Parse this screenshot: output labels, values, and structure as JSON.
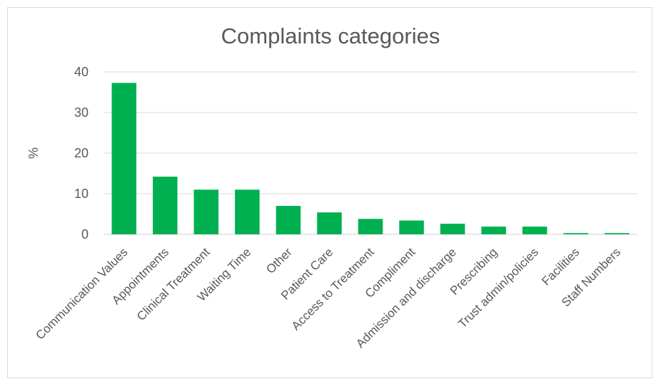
{
  "chart_data": {
    "type": "bar",
    "title": "Complaints categories",
    "xlabel": "",
    "ylabel": "%",
    "ylim": [
      0,
      40
    ],
    "yticks": [
      0,
      10,
      20,
      30,
      40
    ],
    "grid": true,
    "legend": "none",
    "bar_color": "#00b050",
    "categories": [
      "Communication Values",
      "Appointments",
      "Clinical Treatment",
      "Waiting Time",
      "Other",
      "Patient Care",
      "Access to Treatment",
      "Compliment",
      "Admission and discharge",
      "Prescribing",
      "Trust admin/policies",
      "Facilities",
      "Staff Numbers"
    ],
    "values": [
      37.3,
      14.2,
      11.0,
      11.0,
      7.0,
      5.4,
      3.8,
      3.4,
      2.6,
      1.9,
      1.9,
      0.3,
      0.3
    ]
  }
}
